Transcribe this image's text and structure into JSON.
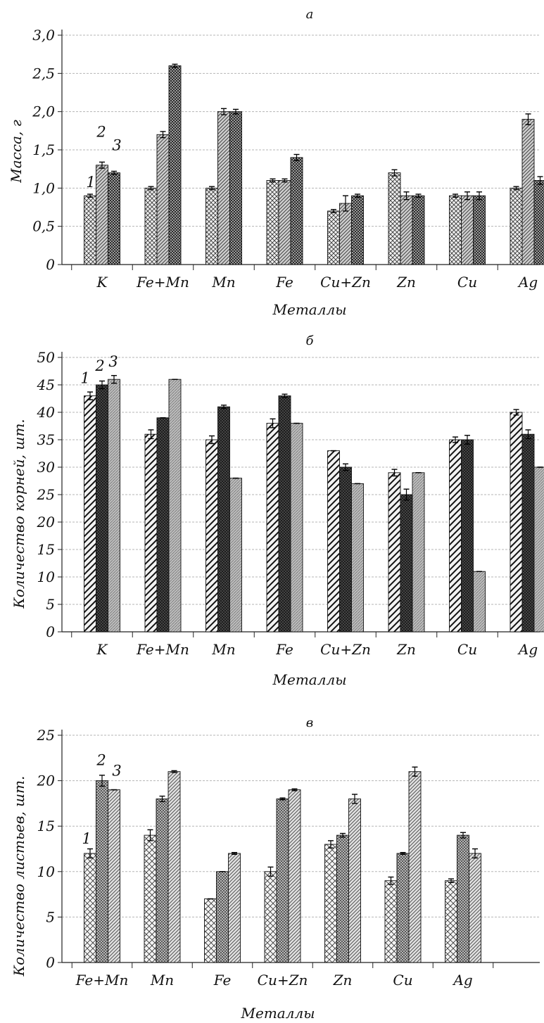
{
  "chart_data": [
    {
      "type": "bar",
      "panel_label": "а",
      "xlabel": "Металлы",
      "ylabel": "Масса, г",
      "ylim": [
        0,
        3.0
      ],
      "yticks": [
        "0",
        "0,5",
        "1,0",
        "1,5",
        "2,0",
        "2,5",
        "3,0"
      ],
      "grid": true,
      "categories": [
        "K",
        "Fe+Mn",
        "Mn",
        "Fe",
        "Cu+Zn",
        "Zn",
        "Cu",
        "Ag"
      ],
      "series_markers": [
        "1",
        "2",
        "3"
      ],
      "series": [
        {
          "values": [
            0.9,
            1.0,
            1.0,
            1.1,
            0.7,
            1.2,
            0.9,
            1.0
          ],
          "errors": [
            0.02,
            0.02,
            0.02,
            0.02,
            0.02,
            0.04,
            0.02,
            0.02
          ]
        },
        {
          "values": [
            1.3,
            1.7,
            2.0,
            1.1,
            0.8,
            0.9,
            0.9,
            1.9
          ],
          "errors": [
            0.04,
            0.04,
            0.04,
            0.02,
            0.1,
            0.05,
            0.05,
            0.07
          ]
        },
        {
          "values": [
            1.2,
            2.6,
            2.0,
            1.4,
            0.9,
            0.9,
            0.9,
            1.1
          ],
          "errors": [
            0.02,
            0.02,
            0.03,
            0.04,
            0.02,
            0.02,
            0.05,
            0.05
          ]
        }
      ]
    },
    {
      "type": "bar",
      "panel_label": "б",
      "xlabel": "Металлы",
      "ylabel": "Количество корней, шт.",
      "ylim": [
        0,
        50
      ],
      "yticks": [
        "0",
        "5",
        "10",
        "15",
        "20",
        "25",
        "30",
        "35",
        "40",
        "45",
        "50"
      ],
      "grid": true,
      "categories": [
        "K",
        "Fe+Mn",
        "Mn",
        "Fe",
        "Cu+Zn",
        "Zn",
        "Cu",
        "Ag"
      ],
      "series_markers": [
        "1",
        "2",
        "3"
      ],
      "series": [
        {
          "values": [
            43,
            36,
            35,
            38,
            33,
            29,
            35,
            40
          ],
          "errors": [
            0.7,
            0.8,
            0.7,
            0.8,
            0,
            0.6,
            0.5,
            0.5
          ]
        },
        {
          "values": [
            45,
            39,
            41,
            43,
            30,
            25,
            35,
            36
          ],
          "errors": [
            0.7,
            0,
            0.3,
            0.3,
            0.6,
            1.0,
            0.8,
            0.8
          ]
        },
        {
          "values": [
            46,
            46,
            28,
            38,
            27,
            29,
            11,
            30
          ],
          "errors": [
            0.7,
            0,
            0,
            0,
            0,
            0,
            0,
            0
          ]
        }
      ]
    },
    {
      "type": "bar",
      "panel_label": "в",
      "xlabel": "Металлы",
      "ylabel": "Количество листьев, шт.",
      "ylim": [
        0,
        25
      ],
      "yticks": [
        "0",
        "5",
        "10",
        "15",
        "20",
        "25"
      ],
      "grid": true,
      "categories": [
        "Fe+Mn",
        "Mn",
        "Fe",
        "Cu+Zn",
        "Zn",
        "Cu",
        "Ag"
      ],
      "series_markers": [
        "1",
        "2",
        "3"
      ],
      "series": [
        {
          "values": [
            12,
            14,
            7,
            10,
            13,
            9,
            9
          ],
          "errors": [
            0.5,
            0.6,
            0,
            0.5,
            0.4,
            0.4,
            0.2
          ]
        },
        {
          "values": [
            20,
            18,
            10,
            18,
            14,
            12,
            14
          ],
          "errors": [
            0.6,
            0.3,
            0,
            0.1,
            0.2,
            0.1,
            0.3
          ]
        },
        {
          "values": [
            19,
            21,
            12,
            19,
            18,
            21,
            12
          ],
          "errors": [
            0,
            0.1,
            0.1,
            0.1,
            0.5,
            0.5,
            0.5
          ]
        }
      ]
    }
  ],
  "colors": {
    "axis": "#222222",
    "grid": "#b5b5b5",
    "bar_fill_a": [
      "#e6e6e6",
      "#c4c4c4",
      "#a8a8a8"
    ],
    "bar_fill_b": [
      "#d2d2d2",
      "#5e5e5e",
      "#a9a9a9"
    ],
    "bar_fill_c": [
      "#d6d6d6",
      "#9e9e9e",
      "#c3c3c3"
    ]
  }
}
